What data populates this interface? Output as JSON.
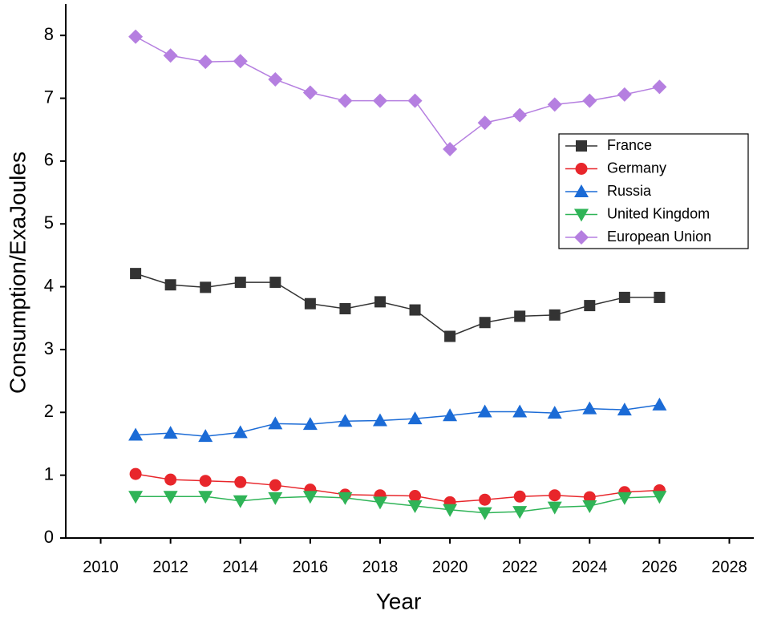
{
  "chart_data": {
    "type": "line",
    "x_label": "Year",
    "y_label": "Consumption/ExaJoules",
    "x": [
      2011,
      2012,
      2013,
      2014,
      2015,
      2016,
      2017,
      2018,
      2019,
      2020,
      2021,
      2022,
      2023,
      2024,
      2025,
      2026
    ],
    "series": [
      {
        "name": "France",
        "color": "#333333",
        "marker": "square",
        "values": [
          4.21,
          4.03,
          3.99,
          4.07,
          4.07,
          3.73,
          3.65,
          3.76,
          3.63,
          3.21,
          3.43,
          3.53,
          3.55,
          3.7,
          3.83,
          3.83
        ]
      },
      {
        "name": "Germany",
        "color": "#e8262b",
        "marker": "circle",
        "values": [
          1.02,
          0.93,
          0.91,
          0.89,
          0.84,
          0.77,
          0.69,
          0.68,
          0.67,
          0.57,
          0.61,
          0.66,
          0.68,
          0.65,
          0.73,
          0.76
        ]
      },
      {
        "name": "Russia",
        "color": "#1b6bd6",
        "marker": "triangle-up",
        "values": [
          1.64,
          1.67,
          1.62,
          1.68,
          1.82,
          1.81,
          1.86,
          1.87,
          1.9,
          1.95,
          2.01,
          2.01,
          1.99,
          2.06,
          2.04,
          2.12
        ]
      },
      {
        "name": "United Kingdom",
        "color": "#2fb457",
        "marker": "triangle-down",
        "values": [
          0.66,
          0.66,
          0.66,
          0.59,
          0.64,
          0.66,
          0.64,
          0.57,
          0.51,
          0.45,
          0.4,
          0.42,
          0.49,
          0.51,
          0.64,
          0.66
        ]
      },
      {
        "name": "European Union",
        "color": "#b57fe0",
        "marker": "diamond",
        "values": [
          7.98,
          7.68,
          7.58,
          7.59,
          7.3,
          7.09,
          6.96,
          6.96,
          6.96,
          6.19,
          6.61,
          6.73,
          6.9,
          6.96,
          7.06,
          7.18
        ]
      }
    ],
    "xlim": [
      2009,
      2028.7
    ],
    "xticks": [
      2010,
      2012,
      2014,
      2016,
      2018,
      2020,
      2022,
      2024,
      2026,
      2028
    ],
    "ylim": [
      0,
      8.5
    ],
    "yticks": [
      0,
      1,
      2,
      3,
      4,
      5,
      6,
      7,
      8
    ],
    "grid": false,
    "legend": "upper right"
  }
}
